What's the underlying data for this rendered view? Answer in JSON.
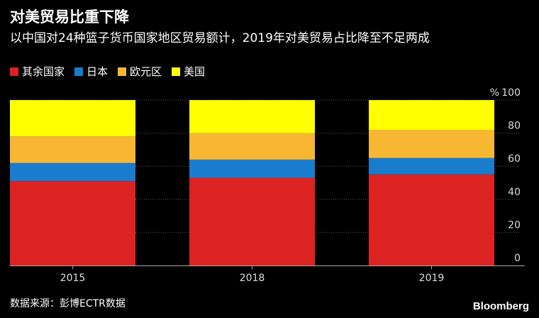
{
  "header": {
    "title": "对美贸易比重下降",
    "subtitle": "以中国对24种篮子货币国家地区贸易额计，2019年对美贸易占比降至不足两成"
  },
  "footer": {
    "source": "数据来源：彭博ECTR数据",
    "brand": "Bloomberg"
  },
  "chart_data": {
    "type": "bar",
    "stacked": true,
    "categories": [
      "2015",
      "2018",
      "2019"
    ],
    "series": [
      {
        "name": "其余国家",
        "color": "#dd2222",
        "values": [
          51,
          53,
          55
        ]
      },
      {
        "name": "日本",
        "color": "#1a7ccc",
        "values": [
          11,
          11,
          10
        ]
      },
      {
        "name": "欧元区",
        "color": "#f7b733",
        "values": [
          16,
          16,
          17
        ]
      },
      {
        "name": "美国",
        "color": "#ffff00",
        "values": [
          22,
          20,
          18
        ]
      }
    ],
    "y_unit": "%",
    "ylim": [
      0,
      100
    ],
    "yticks": [
      0,
      20,
      40,
      60,
      80,
      100
    ],
    "grid": true,
    "legend_position": "top-left",
    "axis_side": "right"
  }
}
